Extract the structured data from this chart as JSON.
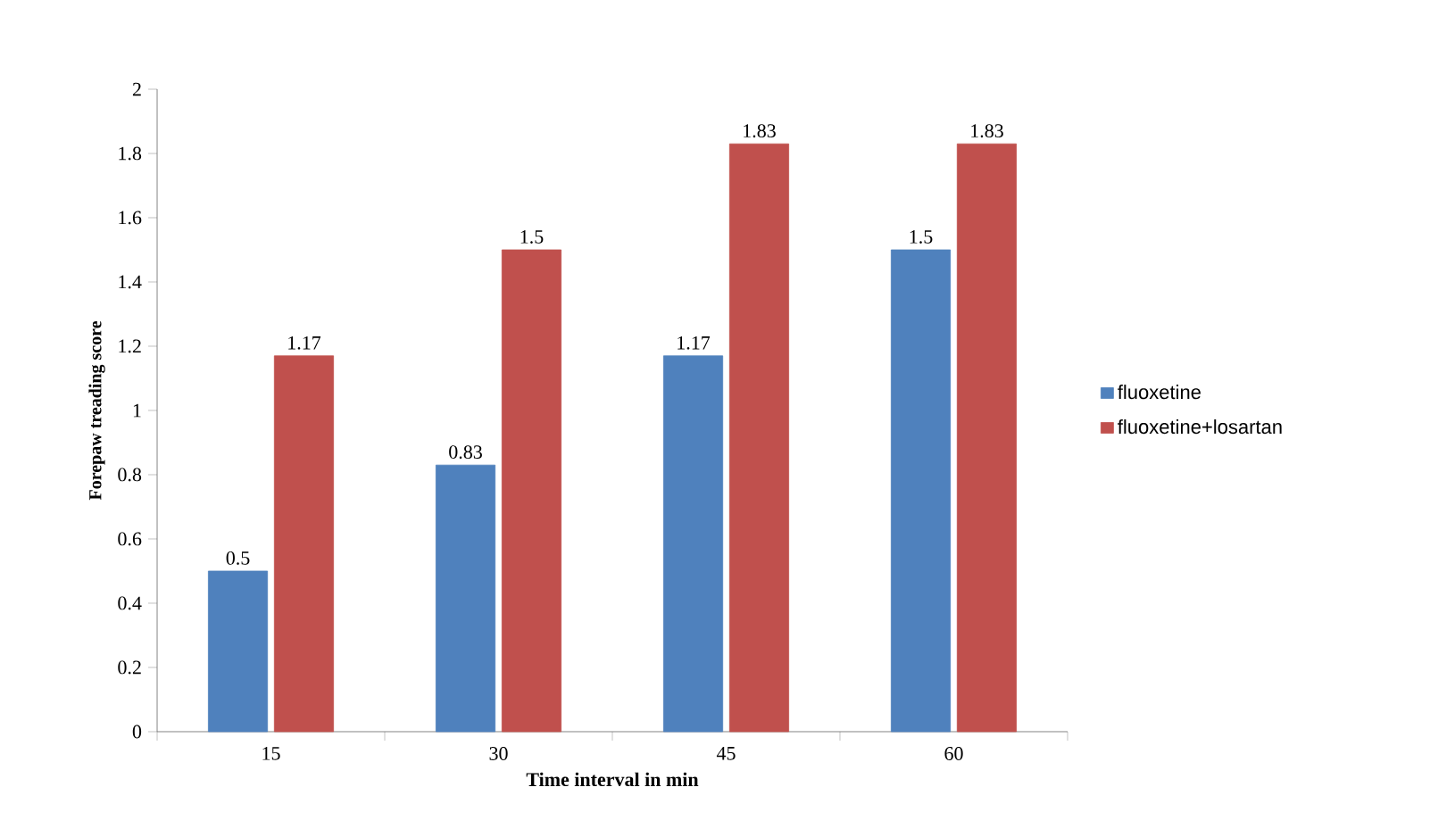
{
  "chart_data": {
    "type": "bar",
    "xlabel": "Time interval in min",
    "ylabel": "Forepaw treading score",
    "categories": [
      "15",
      "30",
      "45",
      "60"
    ],
    "series": [
      {
        "name": "fluoxetine",
        "color": "#4f81bd",
        "values": [
          0.5,
          0.83,
          1.17,
          1.5
        ]
      },
      {
        "name": "fluoxetine+losartan",
        "color": "#c0504d",
        "values": [
          1.17,
          1.5,
          1.83,
          1.83
        ]
      }
    ],
    "ylim": [
      0,
      2
    ],
    "yticks": [
      0,
      0.2,
      0.4,
      0.6,
      0.8,
      1,
      1.2,
      1.4,
      1.6,
      1.8,
      2
    ],
    "data_labels": true,
    "legend": "right",
    "grid": false
  }
}
